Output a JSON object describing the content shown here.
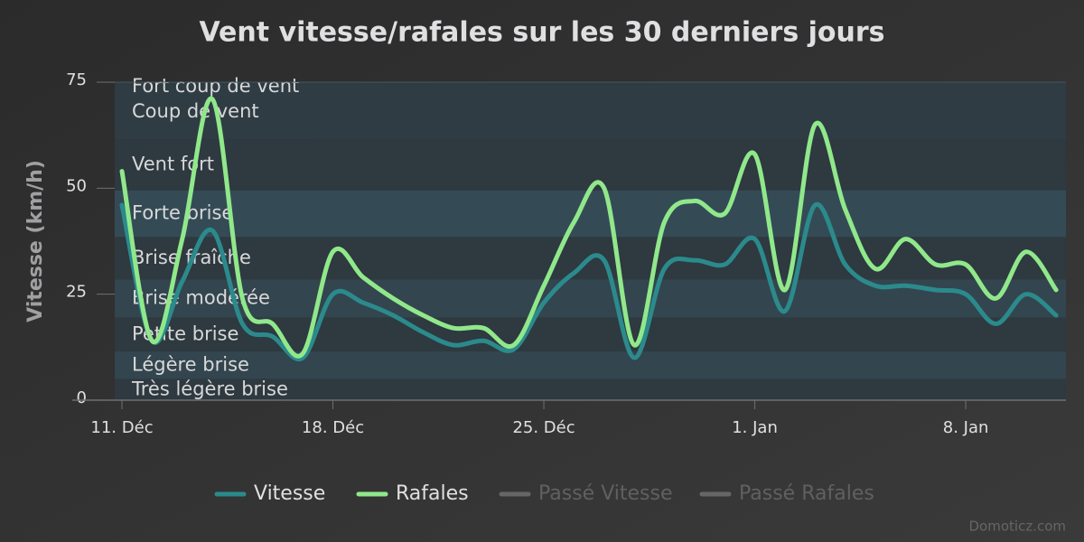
{
  "chart_data": {
    "type": "line",
    "title": "Vent vitesse/rafales sur les 30 derniers jours",
    "y_axis_label": "Vitesse (km/h)",
    "categories": [
      "11. Déc",
      null,
      null,
      null,
      null,
      null,
      null,
      "18. Déc",
      null,
      null,
      null,
      null,
      null,
      null,
      "25. Déc",
      null,
      null,
      null,
      null,
      null,
      null,
      "1. Jan",
      null,
      null,
      null,
      null,
      null,
      null,
      "8. Jan",
      null,
      null,
      null
    ],
    "series": [
      {
        "name": "Vitesse",
        "color": "#2b8a8c",
        "values": [
          46,
          14,
          28,
          40,
          18,
          15,
          10,
          25,
          23,
          20,
          16,
          13,
          14,
          12,
          23,
          30,
          33,
          10,
          31,
          33,
          32,
          38,
          21,
          46,
          32,
          27,
          27,
          26,
          25,
          18,
          25,
          20
        ]
      },
      {
        "name": "Rafales",
        "color": "#90e88a",
        "values": [
          54,
          14,
          38,
          71,
          24,
          18,
          11,
          35,
          29,
          24,
          20,
          17,
          17,
          13,
          27,
          42,
          50,
          13,
          42,
          47,
          44,
          58,
          26,
          65,
          45,
          31,
          38,
          32,
          32,
          24,
          35,
          26
        ]
      },
      {
        "name": "Passé Vitesse",
        "color": "#666666",
        "visible": false
      },
      {
        "name": "Passé Rafales",
        "color": "#666666",
        "visible": false
      }
    ],
    "ylim": [
      0,
      75
    ],
    "yticks": [
      0,
      25,
      50,
      75
    ],
    "plot_bands": [
      {
        "from": 0,
        "to": 5,
        "label": "Très légère brise",
        "color": "#2e3940"
      },
      {
        "from": 5,
        "to": 11.5,
        "label": "Légère brise",
        "color": "#33454e"
      },
      {
        "from": 11.5,
        "to": 19.5,
        "label": "Petite brise",
        "color": "#2e3940"
      },
      {
        "from": 19.5,
        "to": 28.5,
        "label": "Brise modérée",
        "color": "#33454e"
      },
      {
        "from": 28.5,
        "to": 38.5,
        "label": "Brise fraîche",
        "color": "#2e3940"
      },
      {
        "from": 38.5,
        "to": 49.5,
        "label": "Forte brise",
        "color": "#344b56"
      },
      {
        "from": 49.5,
        "to": 61.5,
        "label": "Vent fort",
        "color": "#2e3940"
      },
      {
        "from": 61.5,
        "to": 74.5,
        "label": "Coup de vent",
        "color": "#2f3c44"
      },
      {
        "from": 74.5,
        "to": 88.5,
        "label": "Fort coup de vent",
        "color": "#2f3c44"
      }
    ],
    "credits": "Domoticz.com"
  }
}
